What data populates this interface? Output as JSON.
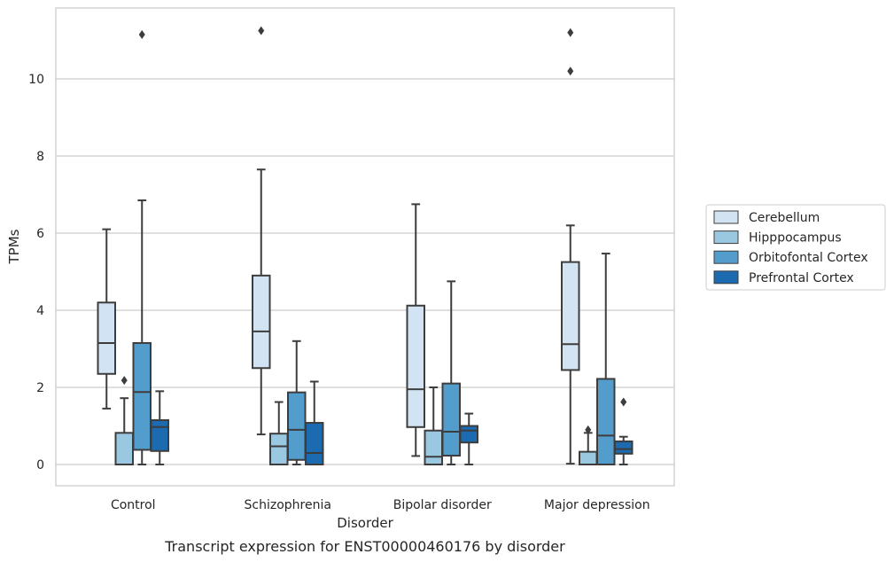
{
  "chart_data": {
    "type": "box",
    "caption": "Transcript expression for ENST00000460176 by disorder",
    "xlabel": "Disorder",
    "ylabel": "TPMs",
    "ylim": [
      -0.55,
      11.9
    ],
    "yticks": [
      0,
      2,
      4,
      6,
      8,
      10
    ],
    "grid": "horizontal",
    "legend_position": "right",
    "categories": [
      "Control",
      "Schizophrenia",
      "Bipolar disorder",
      "Major depression"
    ],
    "series": [
      {
        "name": "Cerebellum",
        "color": "#d2e3f3",
        "boxes": [
          {
            "whisker_low": 1.45,
            "q1": 2.35,
            "median": 3.15,
            "q3": 4.2,
            "whisker_high": 6.1,
            "outliers": []
          },
          {
            "whisker_low": 0.78,
            "q1": 2.5,
            "median": 3.45,
            "q3": 4.9,
            "whisker_high": 7.65,
            "outliers": [
              11.25
            ]
          },
          {
            "whisker_low": 0.22,
            "q1": 0.97,
            "median": 1.95,
            "q3": 4.12,
            "whisker_high": 6.75,
            "outliers": []
          },
          {
            "whisker_low": 0.02,
            "q1": 2.45,
            "median": 3.12,
            "q3": 5.25,
            "whisker_high": 6.2,
            "outliers": [
              11.2,
              10.2
            ]
          }
        ]
      },
      {
        "name": "Hipppocampus",
        "color": "#9ac8e0",
        "boxes": [
          {
            "whisker_low": 0.0,
            "q1": 0.0,
            "median": 0.0,
            "q3": 0.82,
            "whisker_high": 1.72,
            "outliers": [
              2.18
            ]
          },
          {
            "whisker_low": 0.0,
            "q1": 0.0,
            "median": 0.47,
            "q3": 0.8,
            "whisker_high": 1.62,
            "outliers": []
          },
          {
            "whisker_low": 0.0,
            "q1": 0.0,
            "median": 0.2,
            "q3": 0.88,
            "whisker_high": 2.0,
            "outliers": []
          },
          {
            "whisker_low": 0.0,
            "q1": 0.0,
            "median": 0.0,
            "q3": 0.33,
            "whisker_high": 0.82,
            "outliers": [
              0.9
            ]
          }
        ]
      },
      {
        "name": "Orbitofontal Cortex",
        "color": "#529dcc",
        "boxes": [
          {
            "whisker_low": 0.0,
            "q1": 0.38,
            "median": 1.88,
            "q3": 3.15,
            "whisker_high": 6.85,
            "outliers": [
              11.15
            ]
          },
          {
            "whisker_low": 0.0,
            "q1": 0.12,
            "median": 0.9,
            "q3": 1.87,
            "whisker_high": 3.2,
            "outliers": []
          },
          {
            "whisker_low": 0.0,
            "q1": 0.23,
            "median": 0.85,
            "q3": 2.1,
            "whisker_high": 4.75,
            "outliers": []
          },
          {
            "whisker_low": 0.0,
            "q1": 0.0,
            "median": 0.75,
            "q3": 2.22,
            "whisker_high": 5.47,
            "outliers": []
          }
        ]
      },
      {
        "name": "Prefrontal Cortex",
        "color": "#1c6aaf",
        "boxes": [
          {
            "whisker_low": 0.0,
            "q1": 0.35,
            "median": 0.97,
            "q3": 1.15,
            "whisker_high": 1.9,
            "outliers": []
          },
          {
            "whisker_low": 0.0,
            "q1": 0.0,
            "median": 0.3,
            "q3": 1.08,
            "whisker_high": 2.15,
            "outliers": []
          },
          {
            "whisker_low": 0.0,
            "q1": 0.57,
            "median": 0.88,
            "q3": 1.0,
            "whisker_high": 1.32,
            "outliers": []
          },
          {
            "whisker_low": 0.0,
            "q1": 0.28,
            "median": 0.4,
            "q3": 0.6,
            "whisker_high": 0.72,
            "outliers": [
              1.62
            ]
          }
        ]
      }
    ]
  }
}
